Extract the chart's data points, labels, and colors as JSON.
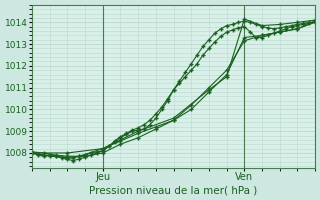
{
  "xlabel": "Pression niveau de la mer( hPa )",
  "bg_color": "#cce8e0",
  "plot_bg_color": "#d8f0e8",
  "grid_color": "#b8d8d0",
  "line_color": "#1a6020",
  "spine_color": "#4a7a50",
  "ylim": [
    1007.3,
    1014.8
  ],
  "yticks": [
    1008,
    1009,
    1010,
    1011,
    1012,
    1013,
    1014
  ],
  "xlim": [
    0,
    48
  ],
  "jeu_x": 12,
  "ven_x": 36,
  "series": [
    [
      0,
      1008.0,
      1,
      1007.9,
      2,
      1007.85,
      3,
      1007.9,
      4,
      1007.85,
      5,
      1007.8,
      6,
      1007.75,
      7,
      1007.78,
      8,
      1007.85,
      9,
      1007.9,
      10,
      1008.0,
      11,
      1008.05,
      12,
      1008.1,
      13,
      1008.3,
      14,
      1008.5,
      15,
      1008.7,
      16,
      1008.85,
      17,
      1009.0,
      18,
      1009.05,
      19,
      1009.1,
      20,
      1009.3,
      21,
      1009.6,
      22,
      1010.0,
      23,
      1010.4,
      24,
      1010.9,
      25,
      1011.3,
      26,
      1011.7,
      27,
      1012.1,
      28,
      1012.5,
      29,
      1012.9,
      30,
      1013.2,
      31,
      1013.5,
      32,
      1013.7,
      33,
      1013.85,
      34,
      1013.9,
      35,
      1014.0,
      36,
      1014.05,
      37,
      1014.0,
      38,
      1013.9,
      39,
      1013.8,
      40,
      1013.75,
      41,
      1013.7,
      42,
      1013.75,
      43,
      1013.8,
      44,
      1013.85,
      45,
      1013.9,
      46,
      1013.95,
      47,
      1014.0,
      48,
      1014.0
    ],
    [
      0,
      1008.0,
      3,
      1007.85,
      6,
      1007.8,
      9,
      1007.85,
      12,
      1008.0,
      15,
      1008.4,
      18,
      1008.7,
      21,
      1009.1,
      24,
      1009.5,
      27,
      1010.0,
      30,
      1010.8,
      33,
      1011.6,
      36,
      1013.3,
      39,
      1013.4,
      42,
      1013.55,
      45,
      1013.7,
      48,
      1014.05
    ],
    [
      0,
      1008.0,
      6,
      1008.0,
      12,
      1008.2,
      18,
      1009.0,
      24,
      1009.6,
      30,
      1010.9,
      33,
      1011.5,
      36,
      1014.15,
      39,
      1013.85,
      42,
      1013.9,
      45,
      1014.0,
      48,
      1014.1
    ],
    [
      0,
      1008.05,
      1,
      1007.95,
      2,
      1007.9,
      3,
      1007.9,
      4,
      1007.85,
      5,
      1007.78,
      6,
      1007.7,
      7,
      1007.65,
      8,
      1007.72,
      9,
      1007.8,
      10,
      1007.9,
      11,
      1008.0,
      12,
      1008.1,
      13,
      1008.3,
      14,
      1008.55,
      15,
      1008.75,
      16,
      1008.9,
      17,
      1009.05,
      18,
      1009.15,
      19,
      1009.3,
      20,
      1009.5,
      21,
      1009.8,
      22,
      1010.1,
      23,
      1010.5,
      24,
      1010.9,
      25,
      1011.2,
      26,
      1011.5,
      27,
      1011.8,
      28,
      1012.1,
      29,
      1012.5,
      30,
      1012.8,
      31,
      1013.1,
      32,
      1013.35,
      33,
      1013.55,
      34,
      1013.65,
      35,
      1013.75,
      36,
      1013.8,
      37,
      1013.55,
      38,
      1013.3,
      39,
      1013.3,
      40,
      1013.4,
      41,
      1013.5,
      42,
      1013.6,
      43,
      1013.7,
      44,
      1013.8,
      45,
      1013.85,
      46,
      1013.9,
      47,
      1013.95,
      48,
      1014.05
    ],
    [
      0,
      1008.05,
      2,
      1008.0,
      4,
      1007.9,
      6,
      1007.85,
      8,
      1007.85,
      12,
      1008.2,
      15,
      1008.55,
      18,
      1008.9,
      21,
      1009.2,
      24,
      1009.5,
      27,
      1010.2,
      30,
      1011.0,
      33,
      1011.8,
      36,
      1013.15,
      39,
      1013.4,
      42,
      1013.55,
      45,
      1013.7,
      48,
      1014.0
    ]
  ]
}
